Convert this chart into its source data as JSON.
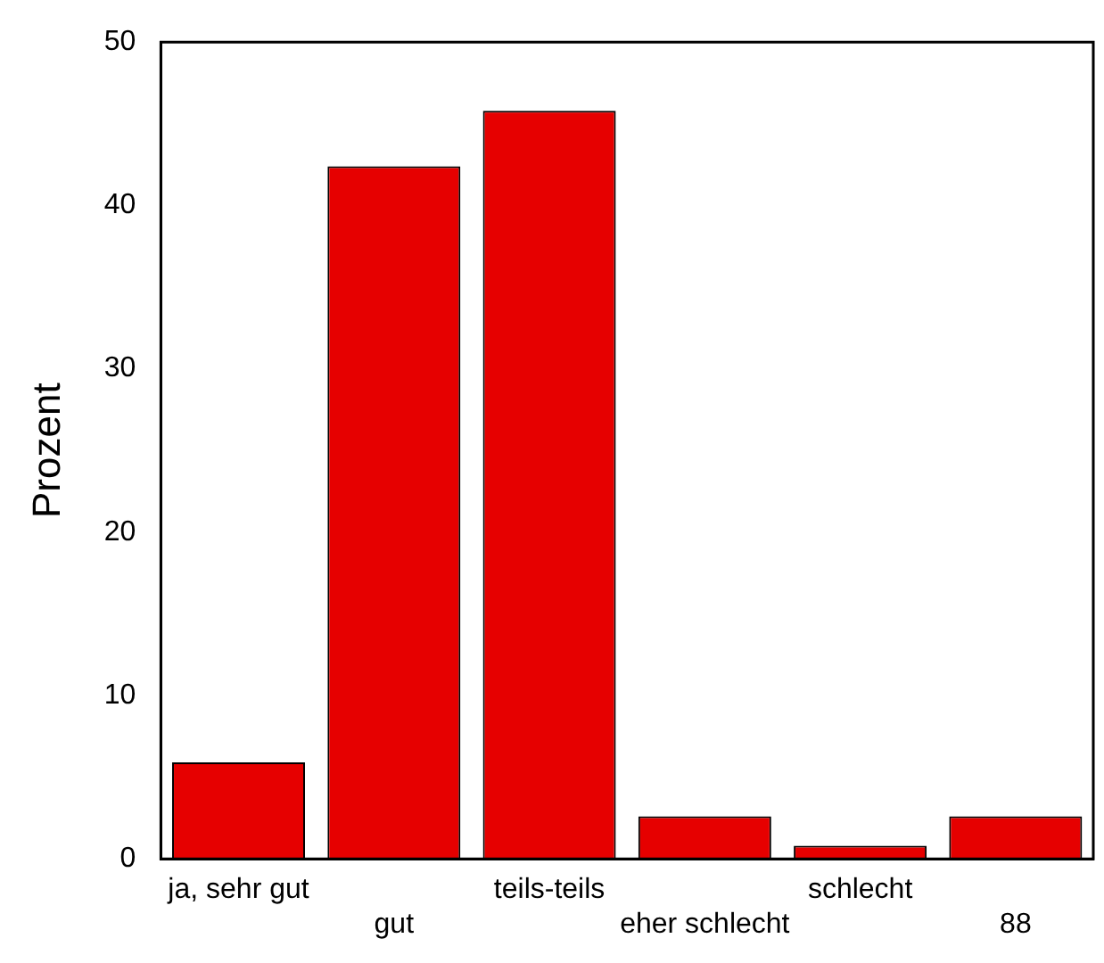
{
  "chart_data": {
    "type": "bar",
    "ylabel": "Prozent",
    "categories": [
      "ja, sehr gut",
      "gut",
      "teils-teils",
      "eher schlecht",
      "schlecht",
      "88"
    ],
    "values": [
      5.9,
      42.4,
      45.8,
      2.6,
      0.8,
      2.6
    ],
    "color": "#e60000",
    "ylim": [
      0,
      50
    ],
    "yticks": [
      0,
      10,
      20,
      30,
      40,
      50
    ],
    "grid": false,
    "legend": false
  }
}
